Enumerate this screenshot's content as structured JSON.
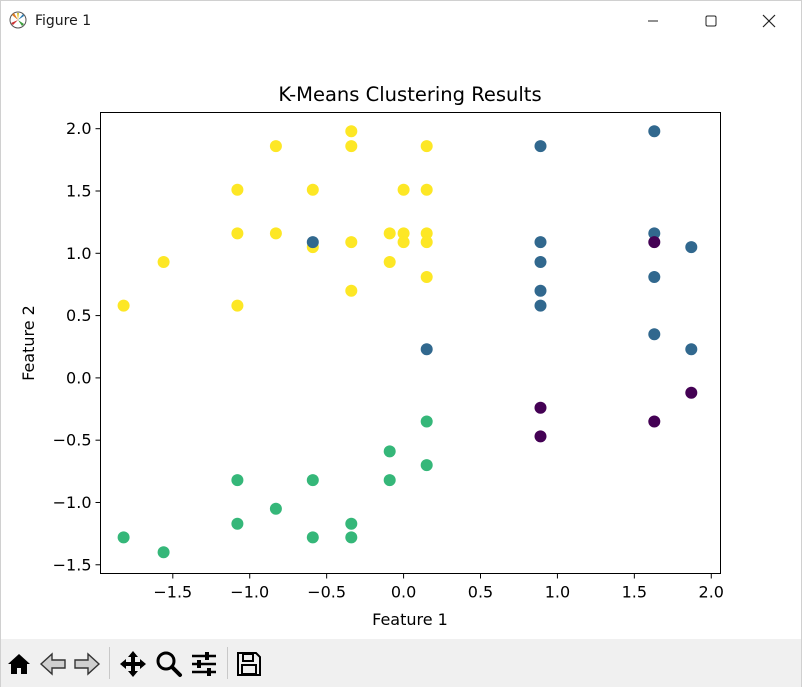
{
  "window": {
    "title": "Figure 1",
    "icons": {
      "app": "matplotlib-icon",
      "minimize": "minimize-icon",
      "maximize": "maximize-icon",
      "close": "close-icon"
    }
  },
  "toolbar": {
    "buttons": [
      {
        "name": "home",
        "icon": "home-icon"
      },
      {
        "name": "back",
        "icon": "back-arrow-icon"
      },
      {
        "name": "forward",
        "icon": "forward-arrow-icon"
      },
      {
        "name": "pan",
        "icon": "pan-move-icon"
      },
      {
        "name": "zoom",
        "icon": "zoom-magnifier-icon"
      },
      {
        "name": "configure-subplots",
        "icon": "sliders-icon"
      },
      {
        "name": "save",
        "icon": "save-floppy-icon"
      }
    ]
  },
  "colors": {
    "cluster0": "#440154",
    "cluster1": "#31688e",
    "cluster2": "#35b779",
    "cluster3": "#fde725"
  },
  "chart_data": {
    "type": "scatter",
    "title": "K-Means Clustering Results",
    "xlabel": "Feature 1",
    "ylabel": "Feature 2",
    "xlim": [
      -1.97,
      2.06
    ],
    "ylim": [
      -1.57,
      2.13
    ],
    "xticks": [
      -1.5,
      -1.0,
      -0.5,
      0.0,
      0.5,
      1.0,
      1.5,
      2.0
    ],
    "xtick_labels": [
      "−1.5",
      "−1.0",
      "−0.5",
      "0.0",
      "0.5",
      "1.0",
      "1.5",
      "2.0"
    ],
    "yticks": [
      -1.5,
      -1.0,
      -0.5,
      0.0,
      0.5,
      1.0,
      1.5,
      2.0
    ],
    "ytick_labels": [
      "−1.5",
      "−1.0",
      "−0.5",
      "0.0",
      "0.5",
      "1.0",
      "1.5",
      "2.0"
    ],
    "grid": false,
    "legend": "none",
    "series": [
      {
        "cluster": 3,
        "points": [
          [
            -1.82,
            0.58
          ],
          [
            -1.56,
            0.93
          ],
          [
            -1.08,
            1.51
          ],
          [
            -1.08,
            1.16
          ],
          [
            -1.08,
            0.58
          ],
          [
            -0.83,
            1.86
          ],
          [
            -0.83,
            1.16
          ],
          [
            -0.59,
            1.51
          ],
          [
            -0.59,
            1.05
          ],
          [
            -0.34,
            1.98
          ],
          [
            -0.34,
            1.86
          ],
          [
            -0.34,
            1.09
          ],
          [
            -0.34,
            0.7
          ],
          [
            -0.09,
            1.16
          ],
          [
            -0.09,
            0.93
          ],
          [
            0.0,
            1.51
          ],
          [
            0.0,
            1.16
          ],
          [
            0.0,
            1.09
          ],
          [
            0.15,
            1.86
          ],
          [
            0.15,
            1.51
          ],
          [
            0.15,
            1.16
          ],
          [
            0.15,
            1.09
          ],
          [
            0.15,
            0.81
          ]
        ]
      },
      {
        "cluster": 1,
        "points": [
          [
            -0.59,
            1.09
          ],
          [
            0.15,
            0.23
          ],
          [
            0.89,
            1.86
          ],
          [
            0.89,
            1.09
          ],
          [
            0.89,
            0.93
          ],
          [
            0.89,
            0.7
          ],
          [
            0.89,
            0.58
          ],
          [
            1.63,
            1.98
          ],
          [
            1.63,
            1.16
          ],
          [
            1.63,
            0.81
          ],
          [
            1.63,
            0.35
          ],
          [
            1.87,
            1.05
          ],
          [
            1.87,
            0.23
          ]
        ]
      },
      {
        "cluster": 0,
        "points": [
          [
            1.63,
            1.09
          ],
          [
            0.89,
            -0.24
          ],
          [
            0.89,
            -0.47
          ],
          [
            1.63,
            -0.35
          ],
          [
            1.87,
            -0.12
          ]
        ]
      },
      {
        "cluster": 2,
        "points": [
          [
            -1.82,
            -1.28
          ],
          [
            -1.56,
            -1.4
          ],
          [
            -1.08,
            -0.82
          ],
          [
            -1.08,
            -1.17
          ],
          [
            -0.83,
            -1.05
          ],
          [
            -0.59,
            -0.82
          ],
          [
            -0.59,
            -1.28
          ],
          [
            -0.34,
            -1.17
          ],
          [
            -0.34,
            -1.28
          ],
          [
            -0.09,
            -0.59
          ],
          [
            -0.09,
            -0.82
          ],
          [
            0.15,
            -0.35
          ],
          [
            0.15,
            -0.7
          ]
        ]
      }
    ]
  }
}
